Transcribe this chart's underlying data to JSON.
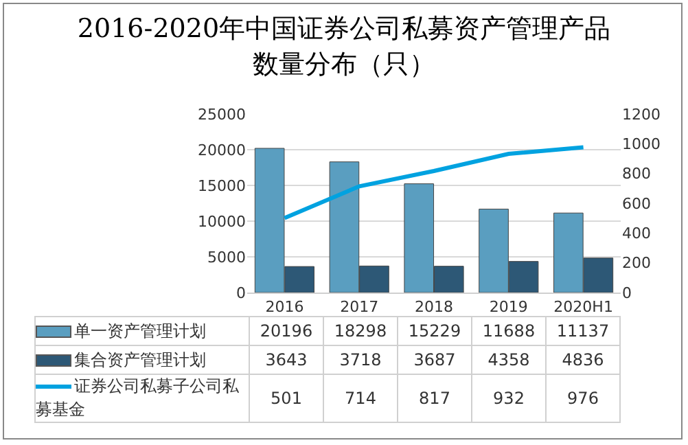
{
  "chart_data": {
    "type": "bar",
    "title": "2016-2020年中国证券公司私募资产管理产品数量分布（只）",
    "categories": [
      "2016",
      "2017",
      "2018",
      "2019",
      "2020H1"
    ],
    "series": [
      {
        "name": "单一资产管理计划",
        "color": "#5a9ec0",
        "values": [
          20196,
          18298,
          15229,
          11688,
          11137
        ]
      },
      {
        "name": "集合资产管理计划",
        "color": "#2d5876",
        "values": [
          3643,
          3718,
          3687,
          4358,
          4836
        ]
      },
      {
        "name": "证券公司私募子公司私募基金",
        "type": "line",
        "axis": "y2",
        "color": "#00a2e0",
        "values": [
          501,
          714,
          817,
          932,
          976
        ]
      }
    ],
    "ylim": [
      0,
      25000
    ],
    "yticks": [
      0,
      5000,
      10000,
      15000,
      20000,
      25000
    ],
    "y2lim": [
      0,
      1200
    ],
    "y2ticks": [
      0,
      200,
      400,
      600,
      800,
      1000,
      1200
    ],
    "grid": "y",
    "legend": "bottom",
    "data_labels": true
  }
}
